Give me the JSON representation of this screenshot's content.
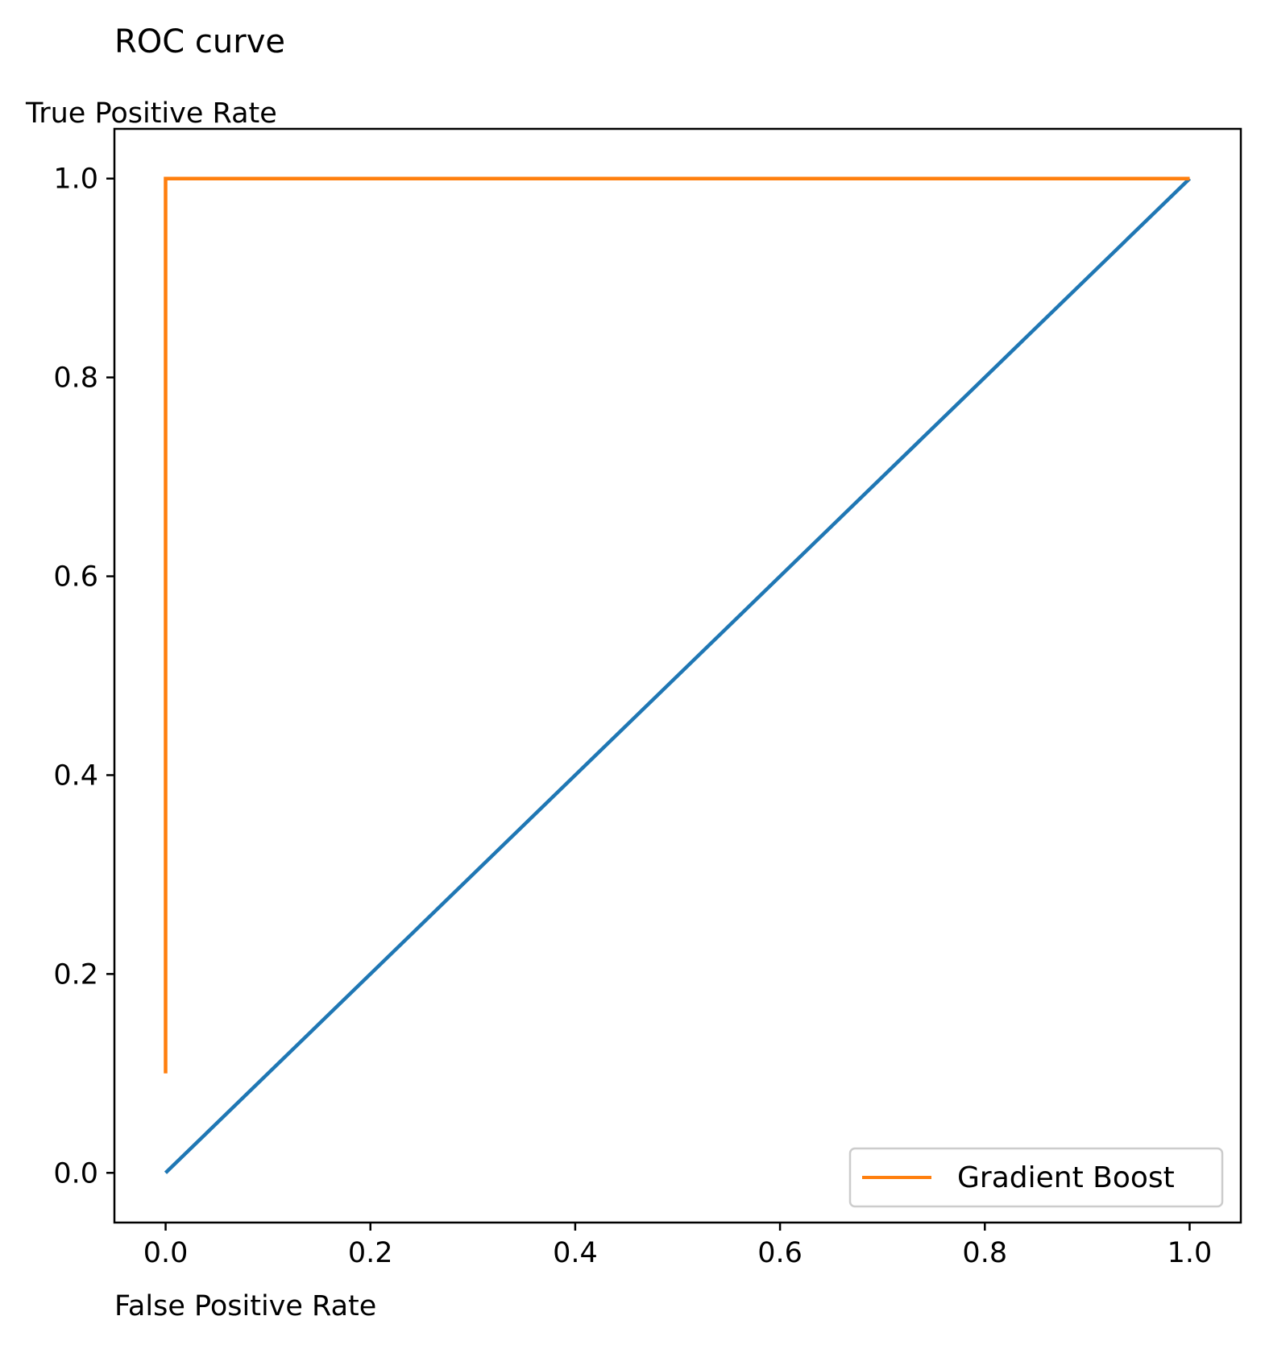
{
  "chart_data": {
    "type": "line",
    "title": "ROC curve",
    "xlabel": "False Positive Rate",
    "ylabel": "True Positive Rate",
    "xlim": [
      -0.05,
      1.05
    ],
    "ylim": [
      -0.05,
      1.05
    ],
    "xticks": [
      0.0,
      0.2,
      0.4,
      0.6,
      0.8,
      1.0
    ],
    "yticks": [
      0.0,
      0.2,
      0.4,
      0.6,
      0.8,
      1.0
    ],
    "xtick_labels": [
      "0.0",
      "0.2",
      "0.4",
      "0.6",
      "0.8",
      "1.0"
    ],
    "ytick_labels": [
      "0.0",
      "0.2",
      "0.4",
      "0.6",
      "0.8",
      "1.0"
    ],
    "grid": false,
    "legend": {
      "position": "lower-right"
    },
    "series": [
      {
        "x": [
          0.0,
          1.0
        ],
        "y": [
          0.0,
          1.0
        ],
        "color": "#1f77b4"
      },
      {
        "name": "Gradient Boost",
        "x": [
          0.0,
          0.0,
          1.0
        ],
        "y": [
          0.1,
          1.0,
          1.0
        ],
        "color": "#ff7f0e"
      }
    ]
  }
}
